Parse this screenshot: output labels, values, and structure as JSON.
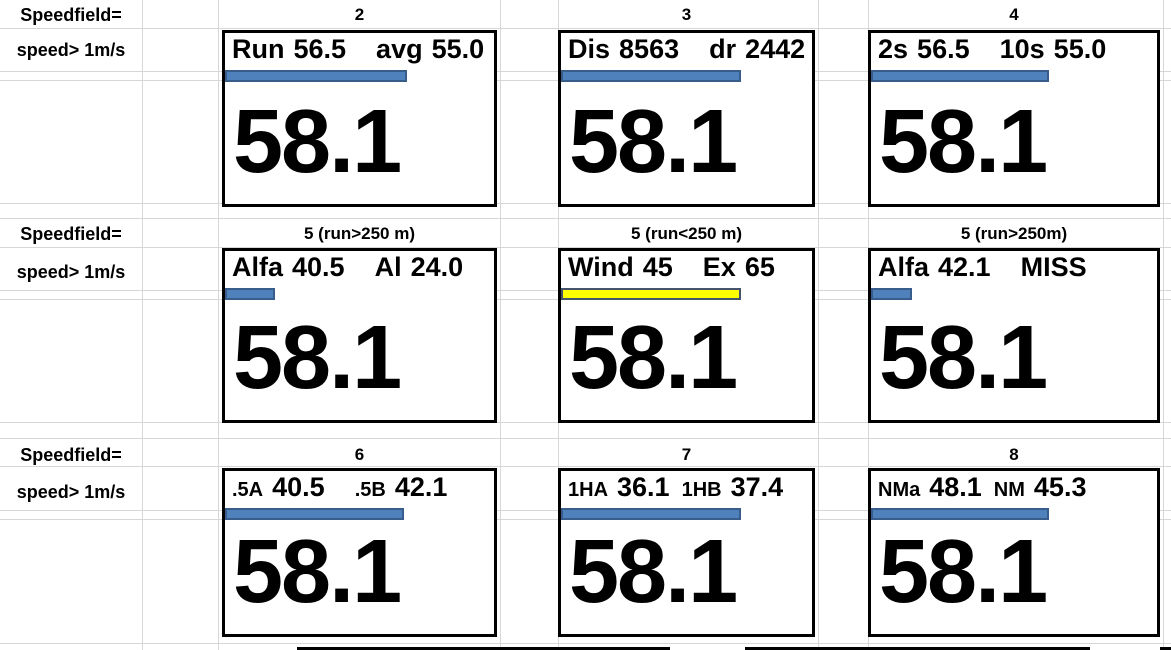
{
  "sheet": {
    "background": "#ffffff",
    "gridline_color": "#d7d7d7",
    "panel_border_color": "#000000",
    "bar_blue_fill": "#4f81bd",
    "bar_blue_border": "#385d8a",
    "bar_yellow_fill": "#ffff00",
    "bar_yellow_border": "#44546a"
  },
  "groups": [
    {
      "speedfield_label": "Speedfield=",
      "speed_label": "speed> 1m/s",
      "panels": [
        {
          "header": "2",
          "metrics": [
            {
              "label": "Run",
              "value": "56.5"
            },
            {
              "label": "avg",
              "value": "55.0"
            }
          ],
          "bar": {
            "percent": 66,
            "fill": "#4f81bd",
            "border": "#385d8a"
          },
          "main_value": "58.1"
        },
        {
          "header": "3",
          "metrics": [
            {
              "label": "Dis",
              "value": "8563"
            },
            {
              "label": "dr",
              "value": "2442"
            }
          ],
          "bar": {
            "percent": 70,
            "fill": "#4f81bd",
            "border": "#385d8a"
          },
          "main_value": "58.1"
        },
        {
          "header": "4",
          "metrics": [
            {
              "label": "2s",
              "value": "56.5"
            },
            {
              "label": "10s",
              "value": "55.0"
            }
          ],
          "bar": {
            "percent": 61,
            "fill": "#4f81bd",
            "border": "#385d8a"
          },
          "main_value": "58.1"
        }
      ]
    },
    {
      "speedfield_label": "Speedfield=",
      "speed_label": "speed> 1m/s",
      "panels": [
        {
          "header": "5 (run>250 m)",
          "metrics": [
            {
              "label": "Alfa",
              "value": "40.5"
            },
            {
              "label": "Al",
              "value": "24.0"
            }
          ],
          "bar": {
            "percent": 17,
            "fill": "#4f81bd",
            "border": "#385d8a"
          },
          "main_value": "58.1"
        },
        {
          "header": "5 (run<250 m)",
          "metrics": [
            {
              "label": "Wind",
              "value": "45"
            },
            {
              "label": "Ex",
              "value": "65"
            }
          ],
          "bar": {
            "percent": 70,
            "fill": "#ffff00",
            "border": "#44546a"
          },
          "main_value": "58.1"
        },
        {
          "header": "5 (run>250m)",
          "metrics": [
            {
              "label": "Alfa",
              "value": "42.1"
            },
            {
              "label": "MISS",
              "value": ""
            }
          ],
          "bar": {
            "percent": 13,
            "fill": "#4f81bd",
            "border": "#385d8a"
          },
          "main_value": "58.1"
        }
      ]
    },
    {
      "speedfield_label": "Speedfield=",
      "speed_label": "speed> 1m/s",
      "panels": [
        {
          "header": "6",
          "metrics": [
            {
              "label": ".5A",
              "value": "40.5"
            },
            {
              "label": ".5B",
              "value": "42.1"
            }
          ],
          "bar": {
            "percent": 65,
            "fill": "#4f81bd",
            "border": "#385d8a"
          },
          "main_value": "58.1"
        },
        {
          "header": "7",
          "metrics": [
            {
              "label": "1HA",
              "value": "36.1"
            },
            {
              "label": "1HB",
              "value": "37.4"
            }
          ],
          "bar": {
            "percent": 70,
            "fill": "#4f81bd",
            "border": "#385d8a"
          },
          "main_value": "58.1"
        },
        {
          "header": "8",
          "metrics": [
            {
              "label": "NMa",
              "value": "48.1"
            },
            {
              "label": "NM",
              "value": "45.3"
            }
          ],
          "bar": {
            "percent": 61,
            "fill": "#4f81bd",
            "border": "#385d8a"
          },
          "main_value": "58.1"
        }
      ]
    }
  ]
}
